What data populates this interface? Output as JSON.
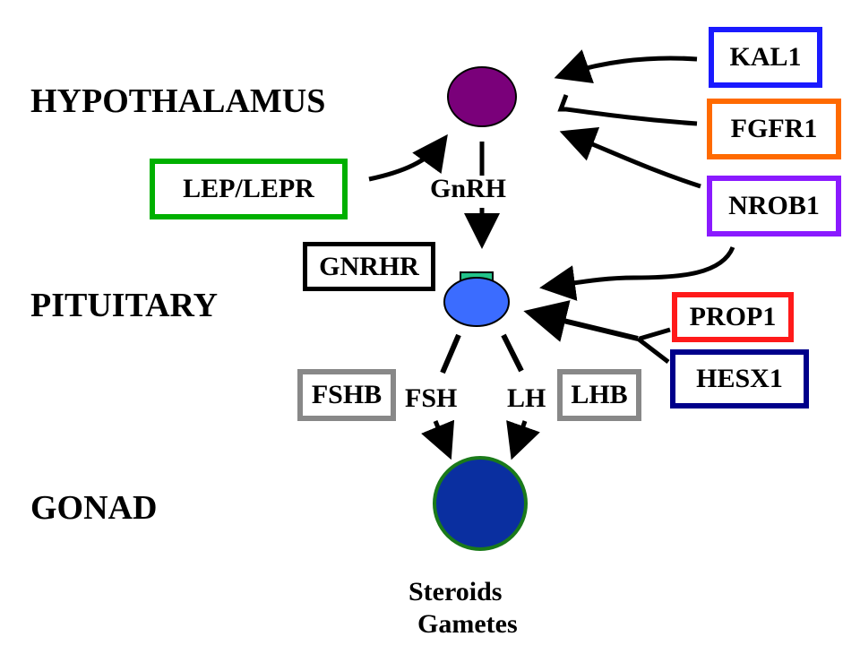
{
  "levels": {
    "hypothalamus": "HYPOTHALAMUS",
    "pituitary": "PITUITARY",
    "gonad": "GONAD"
  },
  "hormones": {
    "gnrh": "GnRH",
    "fsh": "FSH",
    "lh": "LH"
  },
  "outputs": {
    "steroids": "Steroids",
    "gametes": "Gametes"
  },
  "genes": {
    "kal1": {
      "label": "KAL1",
      "color": "#1a1aff"
    },
    "fgfr1": {
      "label": "FGFR1",
      "color": "#ff6a00"
    },
    "nrob1": {
      "label": "NROB1",
      "color": "#8a1aff"
    },
    "lep_lepr": {
      "label": "LEP/LEPR",
      "color": "#00b000"
    },
    "gnrhr": {
      "label": "GNRHR",
      "color": "#000000"
    },
    "prop1": {
      "label": "PROP1",
      "color": "#ff1a1a"
    },
    "hesx1": {
      "label": "HESX1",
      "color": "#00008b"
    },
    "fshb": {
      "label": "FSHB",
      "color": "#888888"
    },
    "lhb": {
      "label": "LHB",
      "color": "#888888"
    }
  },
  "colors": {
    "hypothalamus_cell": "#7a007a",
    "pituitary_cell": "#3b6cff",
    "receptor": "#22c38a",
    "gonad_fill": "#0a2fa0",
    "gonad_outline": "#1a7a1a"
  }
}
